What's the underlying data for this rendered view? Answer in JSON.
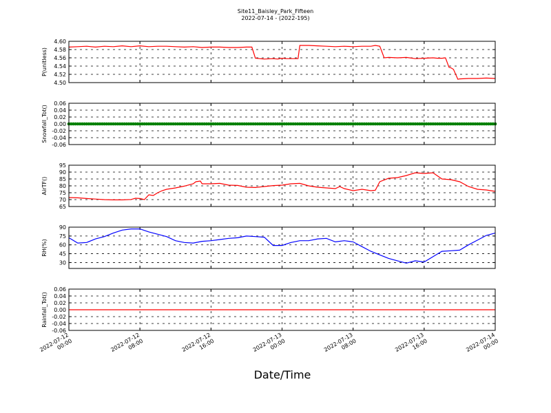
{
  "header": {
    "title_line1": "Site11_Baisley_Park_Fifteen",
    "title_line2": "2022-07-14 - (2022-195)"
  },
  "xaxis": {
    "label": "Date/Time",
    "ticks": [
      {
        "x": 0,
        "line1": "2022-07-12",
        "line2": "00:00"
      },
      {
        "x": 8,
        "line1": "2022-07-12",
        "line2": "08:00"
      },
      {
        "x": 16,
        "line1": "2022-07-12",
        "line2": "16:00"
      },
      {
        "x": 24,
        "line1": "2022-07-13",
        "line2": "00:00"
      },
      {
        "x": 32,
        "line1": "2022-07-13",
        "line2": "08:00"
      },
      {
        "x": 40,
        "line1": "2022-07-13",
        "line2": "16:00"
      },
      {
        "x": 48,
        "line1": "2022-07-14",
        "line2": "00:00"
      }
    ]
  },
  "colors": {
    "red": "#ff0000",
    "green": "#008000",
    "blue": "#0000ff"
  },
  "chart_data": [
    {
      "type": "line",
      "ylabel": "P(unitless)",
      "ylim": [
        4.5,
        4.6
      ],
      "yticks": [
        "4.50",
        "4.52",
        "4.54",
        "4.56",
        "4.58",
        "4.60"
      ],
      "grid": true,
      "series": [
        {
          "color": "#ff0000",
          "style": "line",
          "x": [
            0,
            1,
            2,
            3,
            4,
            5,
            6,
            7,
            8,
            9,
            10,
            11,
            12,
            13,
            14,
            15,
            16,
            17,
            18,
            19,
            20,
            20.6,
            21,
            21.5,
            22,
            23,
            23.5,
            24,
            24.5,
            25,
            25.8,
            26,
            27,
            28,
            29,
            30,
            31,
            32,
            33,
            34,
            34.5,
            35,
            35.5,
            36,
            37,
            38,
            39,
            40,
            41,
            41.5,
            42,
            42.4,
            42.8,
            43,
            43.3,
            43.8,
            44,
            45,
            46,
            47,
            48
          ],
          "y": [
            4.586,
            4.587,
            4.588,
            4.586,
            4.588,
            4.587,
            4.589,
            4.587,
            4.589,
            4.587,
            4.588,
            4.588,
            4.587,
            4.586,
            4.587,
            4.585,
            4.586,
            4.586,
            4.585,
            4.585,
            4.586,
            4.586,
            4.559,
            4.558,
            4.557,
            4.558,
            4.557,
            4.559,
            4.558,
            4.558,
            4.558,
            4.59,
            4.59,
            4.589,
            4.588,
            4.587,
            4.588,
            4.587,
            4.588,
            4.588,
            4.59,
            4.588,
            4.56,
            4.561,
            4.56,
            4.561,
            4.558,
            4.559,
            4.56,
            4.559,
            4.559,
            4.56,
            4.537,
            4.536,
            4.532,
            4.508,
            4.509,
            4.51,
            4.51,
            4.511,
            4.51
          ]
        }
      ]
    },
    {
      "type": "scatter",
      "ylabel": "Snowfall_Tot()",
      "ylim": [
        -0.06,
        0.06
      ],
      "yticks": [
        "-0.06",
        "-0.04",
        "-0.02",
        "0.00",
        "0.02",
        "0.04",
        "0.06"
      ],
      "grid": true,
      "series": [
        {
          "color": "#008000",
          "style": "markers",
          "x": [
            0,
            48
          ],
          "y": [
            0,
            0
          ],
          "interval_hours": 0.25
        }
      ]
    },
    {
      "type": "line",
      "ylabel": "AirTF()",
      "ylim": [
        65,
        95
      ],
      "yticks": [
        "65",
        "70",
        "75",
        "80",
        "85",
        "90",
        "95"
      ],
      "grid": true,
      "series": [
        {
          "color": "#ff0000",
          "style": "line",
          "x": [
            0,
            1,
            2,
            3,
            4,
            5,
            6,
            7,
            7.5,
            8,
            8.5,
            9,
            9.5,
            10,
            10.5,
            11,
            12,
            13,
            14,
            14.3,
            14.8,
            15,
            16,
            17,
            18,
            19,
            20,
            21,
            22,
            23,
            24,
            25,
            26,
            27,
            28,
            29,
            30,
            30.5,
            31,
            32,
            33,
            34,
            34.5,
            35,
            36,
            37,
            38,
            39,
            40,
            41,
            42,
            43,
            44,
            45,
            46,
            47,
            48
          ],
          "y": [
            71.5,
            71.3,
            70.8,
            70.4,
            70,
            69.8,
            69.8,
            70.1,
            71,
            70.8,
            70.0,
            73.5,
            73.0,
            75.0,
            76.5,
            77.5,
            78.5,
            79.8,
            81.5,
            83.0,
            83.5,
            81.5,
            81.5,
            81.8,
            80.5,
            80.3,
            79.0,
            78.8,
            79.5,
            80.2,
            80.5,
            81.5,
            81.8,
            80.0,
            79.0,
            78.5,
            78.0,
            79.5,
            78.0,
            76.5,
            77.5,
            76.5,
            76.8,
            83.0,
            85.5,
            86.0,
            87.5,
            89.5,
            89.0,
            89.5,
            85.0,
            84.5,
            83.0,
            79.5,
            77.5,
            77.0,
            76.0
          ]
        }
      ]
    },
    {
      "type": "line",
      "ylabel": "RH(%)",
      "ylim": [
        20,
        90
      ],
      "yticks": [
        "30",
        "45",
        "60",
        "75",
        "90"
      ],
      "grid": true,
      "series": [
        {
          "color": "#0000ff",
          "style": "line",
          "x": [
            0,
            1,
            2,
            3,
            4,
            5,
            6,
            7,
            8,
            9,
            10,
            11,
            12,
            13,
            14,
            15,
            16,
            17,
            18,
            19,
            20,
            21,
            22,
            23,
            24,
            25,
            26,
            27,
            28,
            29,
            30,
            31,
            32,
            33,
            34,
            35,
            36,
            37,
            38,
            39,
            40,
            41,
            42,
            43,
            44,
            45,
            46,
            47,
            48
          ],
          "y": [
            72,
            63,
            64,
            70,
            74,
            80,
            85,
            87,
            87,
            82,
            78,
            74,
            67,
            64,
            63,
            66,
            67,
            69,
            71,
            72,
            75,
            74,
            73,
            59,
            59,
            64,
            67,
            67,
            70,
            71,
            65,
            67,
            65,
            57,
            49,
            43,
            37,
            33,
            29,
            33,
            31,
            40,
            49,
            50,
            51,
            60,
            68,
            76,
            80
          ]
        }
      ]
    },
    {
      "type": "line",
      "ylabel": "Rainfall_Tot()",
      "ylim": [
        -0.06,
        0.06
      ],
      "yticks": [
        "-0.06",
        "-0.04",
        "-0.02",
        "0.00",
        "0.02",
        "0.04",
        "0.06"
      ],
      "grid": true,
      "series": [
        {
          "color": "#ff0000",
          "style": "line",
          "x": [
            0,
            48
          ],
          "y": [
            0,
            0
          ]
        }
      ]
    }
  ]
}
